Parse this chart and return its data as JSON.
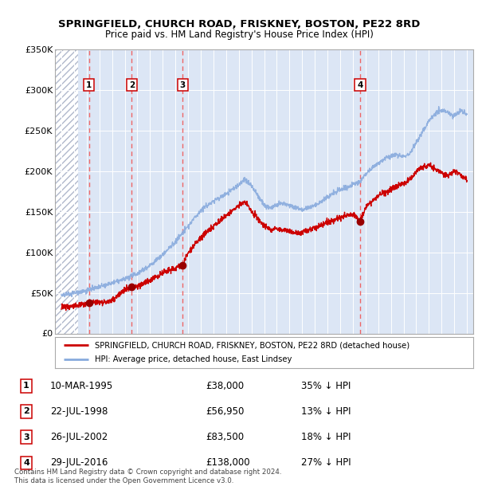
{
  "title": "SPRINGFIELD, CHURCH ROAD, FRISKNEY, BOSTON, PE22 8RD",
  "subtitle": "Price paid vs. HM Land Registry's House Price Index (HPI)",
  "sales": [
    {
      "num": 1,
      "date_label": "10-MAR-1995",
      "x": 1995.19,
      "price": 38000,
      "pct": "35% ↓ HPI"
    },
    {
      "num": 2,
      "date_label": "22-JUL-1998",
      "x": 1998.56,
      "price": 56950,
      "pct": "13% ↓ HPI"
    },
    {
      "num": 3,
      "date_label": "26-JUL-2002",
      "x": 2002.57,
      "price": 83500,
      "pct": "18% ↓ HPI"
    },
    {
      "num": 4,
      "date_label": "29-JUL-2016",
      "x": 2016.57,
      "price": 138000,
      "pct": "27% ↓ HPI"
    }
  ],
  "legend_line1": "SPRINGFIELD, CHURCH ROAD, FRISKNEY, BOSTON, PE22 8RD (detached house)",
  "legend_line2": "HPI: Average price, detached house, East Lindsey",
  "footer1": "Contains HM Land Registry data © Crown copyright and database right 2024.",
  "footer2": "This data is licensed under the Open Government Licence v3.0.",
  "ylim": [
    0,
    350000
  ],
  "xlim_start": 1992.5,
  "xlim_end": 2025.5,
  "yticks": [
    0,
    50000,
    100000,
    150000,
    200000,
    250000,
    300000,
    350000
  ],
  "ytick_labels": [
    "£0",
    "£50K",
    "£100K",
    "£150K",
    "£200K",
    "£250K",
    "£300K",
    "£350K"
  ],
  "plot_bg": "#dce6f5",
  "hatch_bg": "#ffffff",
  "hatch_color": "#b0b8cc",
  "grid_color": "#ffffff",
  "sale_line_color": "#cc0000",
  "hpi_line_color": "#88aadd",
  "dashed_color": "#ee6666",
  "box_edge_color": "#cc0000",
  "hpi_anchors_x": [
    1993.0,
    1994.0,
    1995.0,
    1996.0,
    1997.0,
    1998.0,
    1999.0,
    2000.0,
    2001.0,
    2002.0,
    2003.0,
    2004.0,
    2005.0,
    2006.0,
    2007.0,
    2007.5,
    2008.0,
    2008.5,
    2009.0,
    2009.5,
    2010.0,
    2010.5,
    2011.0,
    2011.5,
    2012.0,
    2012.5,
    2013.0,
    2013.5,
    2014.0,
    2014.5,
    2015.0,
    2015.5,
    2016.0,
    2016.5,
    2017.0,
    2017.5,
    2018.0,
    2018.5,
    2019.0,
    2019.5,
    2020.0,
    2020.5,
    2021.0,
    2021.5,
    2022.0,
    2022.5,
    2023.0,
    2023.5,
    2024.0,
    2024.5,
    2025.0
  ],
  "hpi_anchors_y": [
    47000,
    50000,
    53000,
    57000,
    62000,
    67000,
    74000,
    84000,
    97000,
    113000,
    132000,
    152000,
    163000,
    172000,
    183000,
    190000,
    182000,
    170000,
    158000,
    155000,
    158000,
    160000,
    158000,
    155000,
    153000,
    155000,
    158000,
    162000,
    168000,
    173000,
    177000,
    180000,
    183000,
    187000,
    195000,
    204000,
    210000,
    215000,
    218000,
    220000,
    218000,
    222000,
    235000,
    248000,
    262000,
    272000,
    275000,
    272000,
    268000,
    275000,
    270000
  ],
  "sale_anchors_x": [
    1993.0,
    1994.5,
    1995.0,
    1995.19,
    1995.5,
    1996.0,
    1997.0,
    1998.0,
    1998.56,
    1999.0,
    2000.0,
    2001.0,
    2002.0,
    2002.57,
    2003.0,
    2004.0,
    2005.0,
    2006.0,
    2007.0,
    2007.5,
    2008.0,
    2008.5,
    2009.0,
    2009.5,
    2010.0,
    2010.5,
    2011.0,
    2011.5,
    2012.0,
    2012.5,
    2013.0,
    2013.5,
    2014.0,
    2014.5,
    2015.0,
    2015.5,
    2016.0,
    2016.57,
    2017.0,
    2018.0,
    2019.0,
    2020.0,
    2020.5,
    2021.0,
    2021.5,
    2022.0,
    2022.5,
    2023.0,
    2023.5,
    2024.0,
    2024.5,
    2025.0
  ],
  "sale_anchors_y": [
    33000,
    35000,
    37000,
    38000,
    38500,
    39000,
    40000,
    54000,
    56950,
    58000,
    65000,
    75000,
    80000,
    83500,
    100000,
    118000,
    132000,
    145000,
    158000,
    162000,
    150000,
    142000,
    133000,
    128000,
    130000,
    128000,
    126000,
    124000,
    125000,
    127000,
    130000,
    133000,
    137000,
    140000,
    143000,
    145000,
    148000,
    138000,
    155000,
    170000,
    178000,
    185000,
    190000,
    200000,
    205000,
    208000,
    203000,
    198000,
    195000,
    200000,
    195000,
    190000
  ]
}
